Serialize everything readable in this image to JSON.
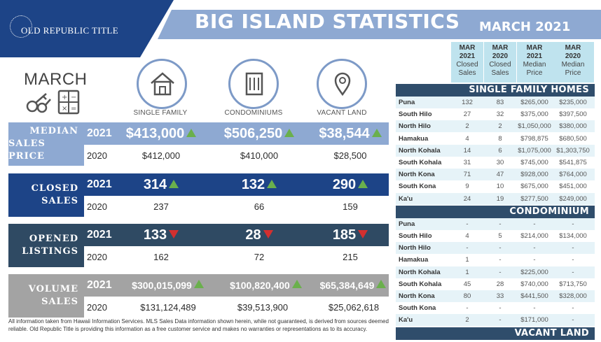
{
  "header": {
    "logo": "OLD REPUBLIC TITLE",
    "title": "BIG ISLAND STATISTICS",
    "subtitle": "MARCH 2021"
  },
  "left": {
    "month": "MARCH",
    "categories": [
      "SINGLE FAMILY",
      "CONDOMINIUMS",
      "VACANT LAND"
    ]
  },
  "colors": {
    "median": "#8ea9d2",
    "closed": "#1d4487",
    "opened": "#2f4a63",
    "volume": "#a3a3a3",
    "up": "#6ab04c",
    "down": "#d32f2f"
  },
  "metrics": [
    {
      "label_1": "MEDIAN",
      "label_2": "SALES PRICE",
      "year_cur": "2021",
      "year_prev": "2020",
      "cur": [
        "$413,000",
        "$506,250",
        "$38,544"
      ],
      "trend": [
        "up",
        "up",
        "up"
      ],
      "prev": [
        "$412,000",
        "$410,000",
        "$28,500"
      ]
    },
    {
      "label_1": "CLOSED",
      "label_2": "SALES",
      "year_cur": "2021",
      "year_prev": "2020",
      "cur": [
        "314",
        "132",
        "290"
      ],
      "trend": [
        "up",
        "up",
        "up"
      ],
      "prev": [
        "237",
        "66",
        "159"
      ]
    },
    {
      "label_1": "OPENED",
      "label_2": "LISTINGS",
      "year_cur": "2021",
      "year_prev": "2020",
      "cur": [
        "133",
        "28",
        "185"
      ],
      "trend": [
        "down",
        "down",
        "down"
      ],
      "prev": [
        "162",
        "72",
        "215"
      ]
    },
    {
      "label_1": "VOLUME",
      "label_2": "SALES",
      "year_cur": "2021",
      "year_prev": "2020",
      "cur": [
        "$300,015,099",
        "$100,820,400",
        "$65,384,649"
      ],
      "trend": [
        "up",
        "up",
        "up"
      ],
      "prev": [
        "$131,124,489",
        "$39,513,900",
        "$25,062,618"
      ]
    }
  ],
  "disclaimer": "All information taken from Hawaii Information Services. MLS Sales Data information shown herein, while not guaranteed, is derived from sources deemed reliable. Old Republic Title is providing this information as a free customer service and makes no warranties or representations as to its accuracy.",
  "table": {
    "headers": [
      {
        "l1": "MAR",
        "l2": "2021",
        "l3": "Closed",
        "l4": "Sales"
      },
      {
        "l1": "MAR",
        "l2": "2020",
        "l3": "Closed",
        "l4": "Sales"
      },
      {
        "l1": "MAR",
        "l2": "2021",
        "l3": "Median",
        "l4": "Price"
      },
      {
        "l1": "MAR",
        "l2": "2020",
        "l3": "Median",
        "l4": "Price"
      }
    ],
    "sections": [
      {
        "title": "SINGLE FAMILY HOMES",
        "rows": [
          [
            "Puna",
            "132",
            "83",
            "$265,000",
            "$235,000"
          ],
          [
            "South Hilo",
            "27",
            "32",
            "$375,000",
            "$397,500"
          ],
          [
            "North Hilo",
            "2",
            "2",
            "$1,050,000",
            "$380,000"
          ],
          [
            "Hamakua",
            "4",
            "8",
            "$798,875",
            "$680,500"
          ],
          [
            "North Kohala",
            "14",
            "6",
            "$1,075,000",
            "$1,303,750"
          ],
          [
            "South Kohala",
            "31",
            "30",
            "$745,000",
            "$541,875"
          ],
          [
            "North Kona",
            "71",
            "47",
            "$928,000",
            "$764,000"
          ],
          [
            "South Kona",
            "9",
            "10",
            "$675,000",
            "$451,000"
          ],
          [
            "Ka'u",
            "24",
            "19",
            "$277,500",
            "$249,000"
          ]
        ]
      },
      {
        "title": "CONDOMINIUM",
        "rows": [
          [
            "Puna",
            "-",
            "-",
            "-",
            "-"
          ],
          [
            "South Hilo",
            "4",
            "5",
            "$214,000",
            "$134,000"
          ],
          [
            "North Hilo",
            "-",
            "-",
            "-",
            "-"
          ],
          [
            "Hamakua",
            "1",
            "-",
            "-",
            "-"
          ],
          [
            "North Kohala",
            "1",
            "-",
            "$225,000",
            "-"
          ],
          [
            "South Kohala",
            "45",
            "28",
            "$740,000",
            "$713,750"
          ],
          [
            "North Kona",
            "80",
            "33",
            "$441,500",
            "$328,000"
          ],
          [
            "South Kona",
            "-",
            "-",
            "-",
            "-"
          ],
          [
            "Ka'u",
            "2",
            "-",
            "$171,000",
            "-"
          ]
        ]
      },
      {
        "title": "VACANT LAND",
        "rows": []
      }
    ]
  }
}
